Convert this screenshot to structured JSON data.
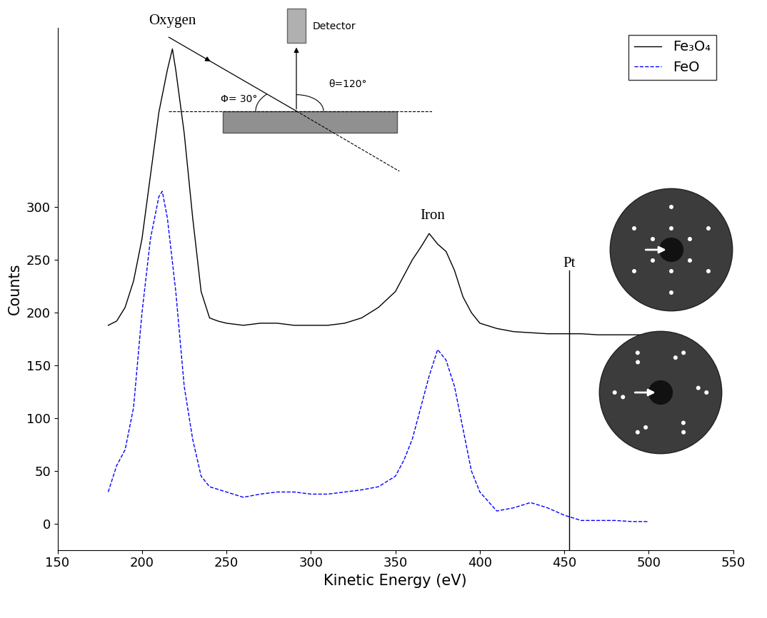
{
  "chart_data": {
    "type": "line",
    "x_label": "Kinetic Energy (eV)",
    "y_label": "Counts",
    "xlim": [
      150,
      550
    ],
    "xticks": [
      150,
      200,
      250,
      300,
      350,
      400,
      450,
      500,
      550
    ],
    "ylim": [
      -25,
      470
    ],
    "yticks": [
      0,
      50,
      100,
      150,
      200,
      250,
      300
    ],
    "legend": "upper right",
    "series": [
      {
        "name": "Fe₃O₄",
        "color": "#000000",
        "line_style": "solid",
        "x": [
          180,
          185,
          190,
          195,
          200,
          205,
          210,
          215,
          218,
          220,
          225,
          230,
          235,
          240,
          245,
          250,
          260,
          270,
          280,
          290,
          300,
          310,
          320,
          330,
          340,
          350,
          355,
          360,
          365,
          370,
          375,
          380,
          385,
          390,
          395,
          400,
          410,
          420,
          430,
          440,
          450,
          460,
          470,
          480,
          490,
          500
        ],
        "values": [
          188,
          192,
          205,
          230,
          270,
          330,
          390,
          430,
          450,
          430,
          370,
          290,
          220,
          195,
          192,
          190,
          188,
          190,
          190,
          188,
          188,
          188,
          190,
          195,
          205,
          220,
          235,
          250,
          262,
          275,
          265,
          258,
          240,
          215,
          200,
          190,
          185,
          182,
          181,
          180,
          180,
          180,
          179,
          179,
          179,
          179
        ]
      },
      {
        "name": "FeO",
        "color": "#0000ff",
        "line_style": "dashed",
        "x": [
          180,
          185,
          190,
          195,
          200,
          205,
          210,
          212,
          215,
          220,
          225,
          230,
          235,
          240,
          250,
          260,
          270,
          280,
          290,
          300,
          310,
          320,
          330,
          340,
          350,
          355,
          360,
          365,
          370,
          375,
          380,
          385,
          390,
          395,
          400,
          410,
          420,
          430,
          440,
          450,
          460,
          470,
          480,
          490,
          500
        ],
        "values": [
          30,
          55,
          70,
          110,
          200,
          270,
          310,
          315,
          290,
          220,
          130,
          80,
          45,
          35,
          30,
          25,
          28,
          30,
          30,
          28,
          28,
          30,
          32,
          35,
          45,
          60,
          80,
          110,
          140,
          165,
          155,
          130,
          90,
          50,
          30,
          12,
          15,
          20,
          15,
          8,
          3,
          3,
          3,
          2,
          2
        ]
      }
    ],
    "annotations": [
      {
        "text": "Oxygen",
        "x": 218,
        "y": 470
      },
      {
        "text": "Iron",
        "x": 372,
        "y": 285
      },
      {
        "text": "Pt",
        "x": 453,
        "y": 240
      }
    ],
    "inset": {
      "detector": "Detector",
      "incidence_angle": "Φ= 30°",
      "detection_angle": "θ=120°"
    }
  }
}
